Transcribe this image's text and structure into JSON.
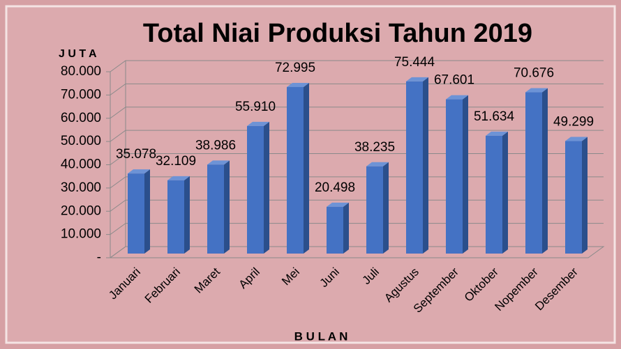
{
  "chart_data": {
    "type": "bar",
    "title": "Total Niai Produksi Tahun 2019",
    "y_axis_label": "J U T A",
    "x_axis_label": "B U L A N",
    "categories": [
      "Januari",
      "Februari",
      "Maret",
      "April",
      "Mei",
      "Juni",
      "Juli",
      "Agustus",
      "September",
      "Oktober",
      "Nopember",
      "Desember"
    ],
    "values": [
      35078,
      32109,
      38986,
      55910,
      72995,
      20498,
      38235,
      75444,
      67601,
      51634,
      70676,
      49299
    ],
    "value_labels": [
      "35.078",
      "32.109",
      "38.986",
      "55.910",
      "72.995",
      "20.498",
      "38.235",
      "75.444",
      "67.601",
      "51.634",
      "70.676",
      "49.299"
    ],
    "color": "#4472c4",
    "ylim": [
      0,
      80000
    ],
    "yticks": [
      {
        "value": 0,
        "label": "-"
      },
      {
        "value": 10000,
        "label": "10.000"
      },
      {
        "value": 20000,
        "label": "20.000"
      },
      {
        "value": 30000,
        "label": "30.000"
      },
      {
        "value": 40000,
        "label": "40.000"
      },
      {
        "value": 50000,
        "label": "50.000"
      },
      {
        "value": 60000,
        "label": "60.000"
      },
      {
        "value": 70000,
        "label": "70.000"
      },
      {
        "value": 80000,
        "label": "80.000"
      }
    ],
    "grid": true
  }
}
